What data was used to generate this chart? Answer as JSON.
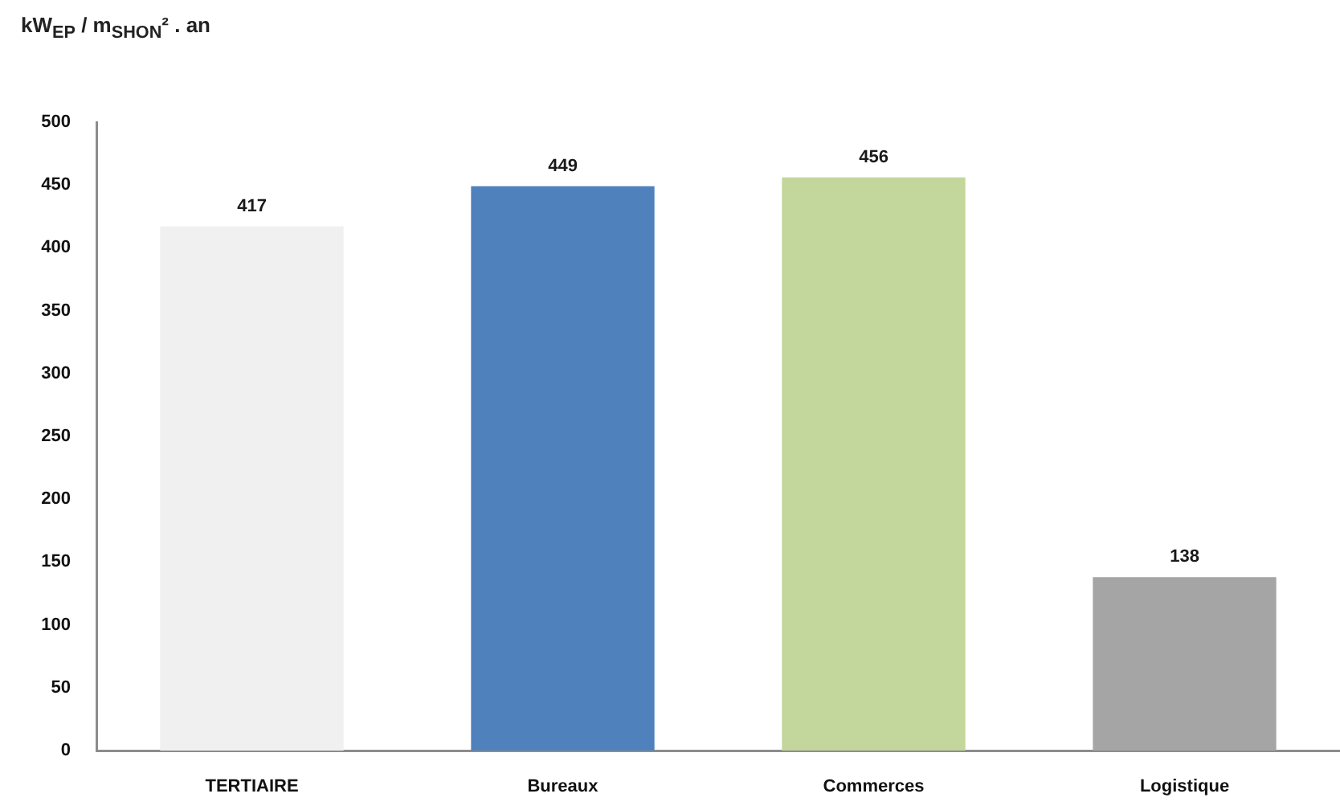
{
  "chart_data": {
    "type": "bar",
    "ylabel": "kW$_{EP}$ / m$_{SHON}$² . an",
    "categories": [
      "TERTIAIRE",
      "Bureaux",
      "Commerces",
      "Logistique"
    ],
    "values": [
      417,
      449,
      456,
      138
    ],
    "colors": [
      "#f0f0f0",
      "#4f81bd",
      "#c3d69b",
      "#a5a5a5"
    ],
    "ylim": [
      0,
      500
    ],
    "yticks": [
      0,
      50,
      100,
      150,
      200,
      250,
      300,
      350,
      400,
      450,
      500
    ],
    "data_labels": true,
    "grid": false
  }
}
